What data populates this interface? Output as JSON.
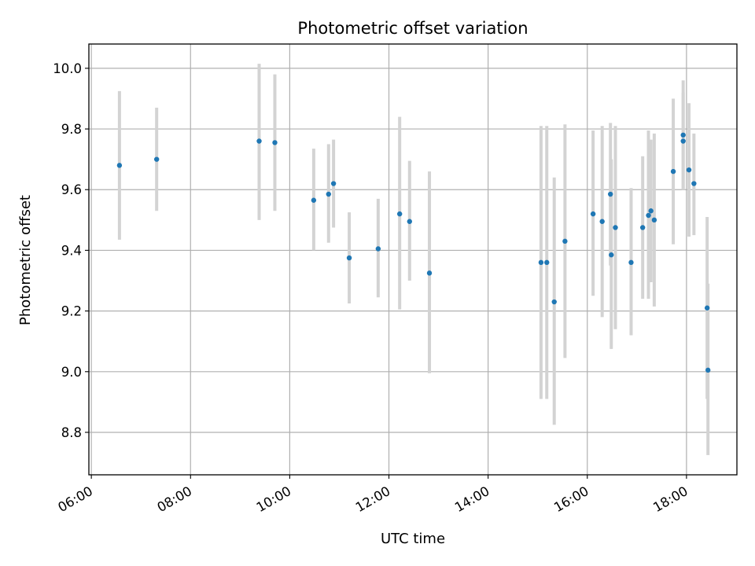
{
  "chart_data": {
    "type": "scatter",
    "title": "Photometric offset variation",
    "xlabel": "UTC time",
    "ylabel": "Photometric offset",
    "xlim": [
      "05:57",
      "19:01"
    ],
    "ylim": [
      8.66,
      10.08
    ],
    "x_ticks": [
      "06:00",
      "08:00",
      "10:00",
      "12:00",
      "14:00",
      "16:00",
      "18:00"
    ],
    "y_ticks": [
      "8.8",
      "9.0",
      "9.2",
      "9.4",
      "9.6",
      "9.8",
      "10.0"
    ],
    "grid": true,
    "colors": {
      "point": "#1f77b4",
      "error_bar": "#d3d3d3"
    },
    "series": [
      {
        "points": [
          {
            "t": "06:34",
            "y": 9.68,
            "lo": 9.435,
            "hi": 9.925
          },
          {
            "t": "07:19",
            "y": 9.7,
            "lo": 9.53,
            "hi": 9.87
          },
          {
            "t": "09:23",
            "y": 9.76,
            "lo": 9.5,
            "hi": 10.015
          },
          {
            "t": "09:42",
            "y": 9.755,
            "lo": 9.53,
            "hi": 9.98
          },
          {
            "t": "10:29",
            "y": 9.565,
            "lo": 9.4,
            "hi": 9.735
          },
          {
            "t": "10:47",
            "y": 9.585,
            "lo": 9.425,
            "hi": 9.75
          },
          {
            "t": "10:53",
            "y": 9.62,
            "lo": 9.475,
            "hi": 9.765
          },
          {
            "t": "11:12",
            "y": 9.375,
            "lo": 9.225,
            "hi": 9.525
          },
          {
            "t": "11:47",
            "y": 9.405,
            "lo": 9.245,
            "hi": 9.57
          },
          {
            "t": "12:13",
            "y": 9.52,
            "lo": 9.205,
            "hi": 9.84
          },
          {
            "t": "12:25",
            "y": 9.495,
            "lo": 9.3,
            "hi": 9.695
          },
          {
            "t": "12:49",
            "y": 9.325,
            "lo": 8.995,
            "hi": 9.66
          },
          {
            "t": "15:04",
            "y": 9.36,
            "lo": 8.91,
            "hi": 9.81
          },
          {
            "t": "15:11",
            "y": 9.36,
            "lo": 8.91,
            "hi": 9.81
          },
          {
            "t": "15:20",
            "y": 9.23,
            "lo": 8.825,
            "hi": 9.64
          },
          {
            "t": "15:33",
            "y": 9.43,
            "lo": 9.045,
            "hi": 9.815
          },
          {
            "t": "16:07",
            "y": 9.52,
            "lo": 9.25,
            "hi": 9.795
          },
          {
            "t": "16:18",
            "y": 9.495,
            "lo": 9.18,
            "hi": 9.81
          },
          {
            "t": "16:28",
            "y": 9.585,
            "lo": 9.35,
            "hi": 9.82
          },
          {
            "t": "16:29",
            "y": 9.385,
            "lo": 9.075,
            "hi": 9.7
          },
          {
            "t": "16:34",
            "y": 9.475,
            "lo": 9.14,
            "hi": 9.81
          },
          {
            "t": "16:53",
            "y": 9.36,
            "lo": 9.12,
            "hi": 9.605
          },
          {
            "t": "17:07",
            "y": 9.475,
            "lo": 9.24,
            "hi": 9.71
          },
          {
            "t": "17:14",
            "y": 9.515,
            "lo": 9.24,
            "hi": 9.795
          },
          {
            "t": "17:17",
            "y": 9.53,
            "lo": 9.295,
            "hi": 9.765
          },
          {
            "t": "17:21",
            "y": 9.5,
            "lo": 9.215,
            "hi": 9.785
          },
          {
            "t": "17:44",
            "y": 9.66,
            "lo": 9.42,
            "hi": 9.9
          },
          {
            "t": "17:56",
            "y": 9.78,
            "lo": 9.6,
            "hi": 9.96
          },
          {
            "t": "17:56",
            "y": 9.76,
            "lo": 9.6,
            "hi": 9.92
          },
          {
            "t": "18:03",
            "y": 9.665,
            "lo": 9.445,
            "hi": 9.885
          },
          {
            "t": "18:09",
            "y": 9.62,
            "lo": 9.45,
            "hi": 9.785
          },
          {
            "t": "18:25",
            "y": 9.21,
            "lo": 8.91,
            "hi": 9.51
          },
          {
            "t": "18:26",
            "y": 9.005,
            "lo": 8.725,
            "hi": 9.29
          }
        ]
      }
    ]
  }
}
